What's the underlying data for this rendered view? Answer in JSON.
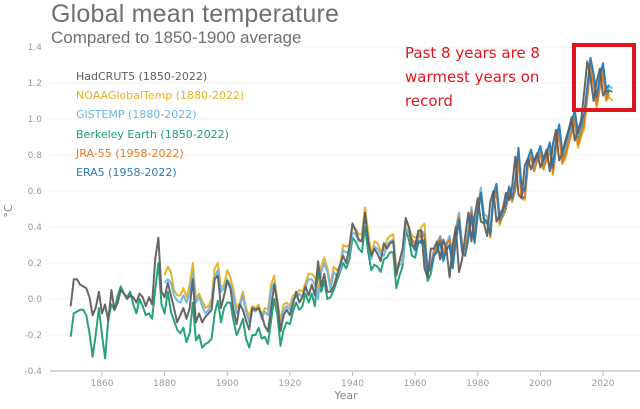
{
  "chart_data": {
    "type": "line",
    "title": "Global mean temperature",
    "subtitle": "Compared to 1850-1900 average",
    "xlabel": "Year",
    "ylabel": "°C",
    "xlim": [
      1845,
      2030
    ],
    "ylim": [
      -0.4,
      1.4
    ],
    "xticks": [
      1860,
      1880,
      1900,
      1920,
      1940,
      1960,
      1980,
      2000,
      2020
    ],
    "yticks": [
      -0.4,
      -0.2,
      0.0,
      0.2,
      0.4,
      0.6,
      0.8,
      1.0,
      1.2,
      1.4
    ],
    "ytick_labels": [
      "-0.4",
      "-0.2",
      "0.0",
      "0.2",
      "0.4",
      "0.6",
      "0.8",
      "1.0",
      "1.2",
      "1.4"
    ],
    "grid": true,
    "legend_position": "top-left",
    "annotation": {
      "text_lines": [
        "Past 8 years are 8",
        "warmest years on",
        "record"
      ],
      "color": "#e0161c",
      "highlight_years": [
        2015,
        2022
      ]
    },
    "series": [
      {
        "name": "HadCRUT5 (1850-2022)",
        "color": "#5f5f5f",
        "start": 1850,
        "values": [
          -0.04,
          0.11,
          0.11,
          0.08,
          0.07,
          0.06,
          0.01,
          -0.09,
          -0.05,
          0.04,
          -0.08,
          -0.03,
          -0.12,
          0.05,
          -0.06,
          -0.02,
          0.05,
          0.03,
          0.0,
          0.02,
          0.01,
          -0.02,
          0.03,
          0.01,
          -0.04,
          0.01,
          -0.03,
          0.22,
          0.34,
          0.04,
          0.01,
          0.09,
          0.02,
          -0.05,
          -0.13,
          -0.09,
          -0.05,
          -0.11,
          -0.05,
          0.11,
          -0.13,
          -0.08,
          -0.13,
          -0.1,
          -0.08,
          -0.06,
          0.11,
          0.13,
          -0.05,
          0.02,
          0.1,
          0.06,
          -0.06,
          -0.14,
          -0.03,
          -0.06,
          -0.12,
          -0.17,
          -0.05,
          -0.06,
          -0.05,
          -0.09,
          -0.15,
          -0.18,
          -0.05,
          0.08,
          -0.02,
          -0.18,
          -0.09,
          -0.06,
          -0.09,
          -0.03,
          0.04,
          -0.02,
          0.01,
          0.07,
          0.02,
          0.08,
          0.02,
          0.21,
          0.07,
          0.14,
          0.04,
          0.04,
          0.07,
          0.13,
          0.19,
          0.24,
          0.2,
          0.29,
          0.42,
          0.38,
          0.33,
          0.32,
          0.48,
          0.32,
          0.24,
          0.28,
          0.25,
          0.21,
          0.31,
          0.28,
          0.31,
          0.32,
          0.13,
          0.21,
          0.28,
          0.45,
          0.4,
          0.3,
          0.29,
          0.38,
          0.38,
          0.17,
          0.12,
          0.28,
          0.28,
          0.32,
          0.22,
          0.33,
          0.28,
          0.12,
          0.3,
          0.4,
          0.15,
          0.22,
          0.35,
          0.48,
          0.32,
          0.46,
          0.56,
          0.43,
          0.42,
          0.35,
          0.54,
          0.6,
          0.43,
          0.47,
          0.5,
          0.59,
          0.55,
          0.63,
          0.79,
          0.58,
          0.56,
          0.74,
          0.78,
          0.72,
          0.77,
          0.81,
          0.73,
          0.78,
          0.83,
          0.71,
          0.86,
          0.94,
          0.77,
          0.81,
          0.88,
          0.94,
          1.01,
          0.88,
          0.94,
          0.99,
          1.15,
          1.32,
          1.23,
          1.1,
          1.21,
          1.28,
          1.13,
          1.16,
          1.15
        ]
      },
      {
        "name": "NOAAGlobalTemp (1880-2022)",
        "color": "#e8b01e",
        "start": 1880,
        "values": [
          0.13,
          0.18,
          0.15,
          0.05,
          0.02,
          0.02,
          0.06,
          0.01,
          0.08,
          0.2,
          0.0,
          0.03,
          -0.01,
          -0.05,
          -0.04,
          0.0,
          0.17,
          0.2,
          0.06,
          0.08,
          0.16,
          0.12,
          0.05,
          -0.05,
          -0.02,
          0.04,
          -0.05,
          -0.1,
          -0.04,
          -0.05,
          -0.03,
          -0.09,
          -0.05,
          -0.06,
          0.08,
          0.13,
          -0.01,
          -0.12,
          -0.03,
          -0.02,
          -0.04,
          0.02,
          0.03,
          0.05,
          0.04,
          0.09,
          0.14,
          0.14,
          0.12,
          0.03,
          0.18,
          0.23,
          0.17,
          0.08,
          0.18,
          0.16,
          0.18,
          0.3,
          0.29,
          0.3,
          0.4,
          0.39,
          0.36,
          0.36,
          0.51,
          0.37,
          0.24,
          0.32,
          0.31,
          0.27,
          0.27,
          0.33,
          0.35,
          0.36,
          0.17,
          0.21,
          0.22,
          0.43,
          0.4,
          0.35,
          0.34,
          0.35,
          0.4,
          0.42,
          0.14,
          0.18,
          0.27,
          0.29,
          0.35,
          0.24,
          0.3,
          0.34,
          0.22,
          0.37,
          0.47,
          0.28,
          0.25,
          0.37,
          0.5,
          0.34,
          0.5,
          0.59,
          0.45,
          0.43,
          0.34,
          0.55,
          0.62,
          0.41,
          0.47,
          0.52,
          0.59,
          0.54,
          0.6,
          0.76,
          0.56,
          0.55,
          0.75,
          0.8,
          0.71,
          0.77,
          0.8,
          0.73,
          0.77,
          0.83,
          0.69,
          0.83,
          0.91,
          0.75,
          0.78,
          0.86,
          0.92,
          0.98,
          0.84,
          0.9,
          0.95,
          1.11,
          1.28,
          1.19,
          1.06,
          1.17,
          1.24,
          1.1,
          1.12,
          1.1
        ]
      },
      {
        "name": "GISTEMP (1880-2022)",
        "color": "#6cb4e6",
        "start": 1880,
        "values": [
          0.09,
          0.11,
          0.09,
          0.02,
          -0.01,
          -0.02,
          0.02,
          -0.02,
          0.03,
          0.15,
          -0.02,
          0.01,
          -0.04,
          -0.08,
          -0.06,
          -0.03,
          0.12,
          0.16,
          0.04,
          0.06,
          0.11,
          0.08,
          0.02,
          -0.08,
          -0.04,
          0.02,
          -0.07,
          -0.13,
          -0.06,
          -0.07,
          -0.05,
          -0.11,
          -0.07,
          -0.09,
          0.05,
          0.09,
          -0.04,
          -0.15,
          -0.06,
          -0.04,
          -0.06,
          0.0,
          0.01,
          0.03,
          0.01,
          0.07,
          0.11,
          0.11,
          0.08,
          0.0,
          0.15,
          0.2,
          0.15,
          0.05,
          0.15,
          0.13,
          0.16,
          0.27,
          0.26,
          0.26,
          0.37,
          0.36,
          0.32,
          0.32,
          0.47,
          0.33,
          0.22,
          0.29,
          0.28,
          0.25,
          0.24,
          0.3,
          0.32,
          0.33,
          0.15,
          0.19,
          0.2,
          0.4,
          0.37,
          0.32,
          0.32,
          0.33,
          0.38,
          0.36,
          0.16,
          0.2,
          0.27,
          0.31,
          0.35,
          0.26,
          0.31,
          0.35,
          0.23,
          0.39,
          0.48,
          0.31,
          0.28,
          0.39,
          0.51,
          0.35,
          0.52,
          0.62,
          0.47,
          0.46,
          0.38,
          0.58,
          0.63,
          0.44,
          0.48,
          0.53,
          0.63,
          0.56,
          0.64,
          0.82,
          0.59,
          0.59,
          0.77,
          0.82,
          0.74,
          0.8,
          0.83,
          0.76,
          0.8,
          0.86,
          0.74,
          0.88,
          0.96,
          0.8,
          0.84,
          0.91,
          0.97,
          1.04,
          0.91,
          0.97,
          1.02,
          1.17,
          1.33,
          1.24,
          1.11,
          1.22,
          1.3,
          1.15,
          1.18,
          1.17
        ]
      },
      {
        "name": "Berkeley Earth (1850-2022)",
        "color": "#1a9e72",
        "start": 1850,
        "values": [
          -0.21,
          -0.08,
          -0.07,
          -0.06,
          -0.06,
          -0.09,
          -0.19,
          -0.32,
          -0.2,
          -0.05,
          -0.2,
          -0.33,
          -0.11,
          -0.03,
          -0.06,
          0.02,
          0.07,
          0.03,
          0.01,
          0.04,
          -0.03,
          -0.08,
          0.0,
          -0.04,
          -0.09,
          -0.08,
          -0.11,
          0.05,
          0.2,
          -0.03,
          -0.08,
          0.04,
          -0.07,
          -0.12,
          -0.17,
          -0.19,
          -0.16,
          -0.24,
          -0.19,
          -0.02,
          -0.23,
          -0.2,
          -0.27,
          -0.25,
          -0.24,
          -0.22,
          -0.08,
          -0.01,
          -0.13,
          -0.05,
          -0.02,
          -0.02,
          -0.12,
          -0.2,
          -0.16,
          -0.11,
          -0.22,
          -0.27,
          -0.2,
          -0.2,
          -0.16,
          -0.22,
          -0.21,
          -0.25,
          -0.12,
          0.0,
          -0.09,
          -0.26,
          -0.17,
          -0.13,
          -0.14,
          -0.07,
          -0.02,
          -0.06,
          -0.04,
          0.03,
          -0.02,
          0.03,
          -0.04,
          0.16,
          0.04,
          0.1,
          0.0,
          0.01,
          0.05,
          0.1,
          0.15,
          0.2,
          0.17,
          0.22,
          0.34,
          0.32,
          0.28,
          0.26,
          0.4,
          0.26,
          0.16,
          0.19,
          0.18,
          0.15,
          0.22,
          0.23,
          0.26,
          0.26,
          0.06,
          0.13,
          0.18,
          0.38,
          0.33,
          0.24,
          0.23,
          0.31,
          0.33,
          0.3,
          0.1,
          0.14,
          0.24,
          0.26,
          0.32,
          0.21,
          0.28,
          0.3,
          0.17,
          0.32,
          0.43,
          0.27,
          0.25,
          0.34,
          0.46,
          0.31,
          0.47,
          0.58,
          0.43,
          0.42,
          0.35,
          0.54,
          0.6,
          0.42,
          0.46,
          0.5,
          0.6,
          0.54,
          0.61,
          0.78,
          0.57,
          0.56,
          0.74,
          0.79,
          0.72,
          0.77,
          0.81,
          0.74,
          0.78,
          0.84,
          0.72,
          0.86,
          0.94,
          0.78,
          0.82,
          0.89,
          0.95,
          1.02,
          0.89,
          0.95,
          1.0,
          1.16,
          1.31,
          1.23,
          1.1,
          1.21,
          1.28,
          1.13,
          1.16,
          1.15
        ]
      },
      {
        "name": "JRA-55 (1958-2022)",
        "color": "#e07a26",
        "start": 1958,
        "values": [
          0.36,
          0.33,
          0.3,
          0.36,
          0.34,
          0.36,
          0.14,
          0.18,
          0.26,
          0.29,
          0.34,
          0.24,
          0.3,
          0.33,
          0.21,
          0.36,
          0.46,
          0.29,
          0.27,
          0.37,
          0.49,
          0.34,
          0.5,
          0.59,
          0.45,
          0.43,
          0.35,
          0.55,
          0.6,
          0.42,
          0.47,
          0.51,
          0.59,
          0.55,
          0.61,
          0.77,
          0.56,
          0.56,
          0.75,
          0.79,
          0.71,
          0.77,
          0.81,
          0.72,
          0.78,
          0.82,
          0.7,
          0.84,
          0.92,
          0.76,
          0.8,
          0.87,
          0.93,
          0.99,
          0.86,
          0.92,
          0.97,
          1.13,
          1.29,
          1.2,
          1.08,
          1.18,
          1.25,
          1.11,
          1.14
        ]
      },
      {
        "name": "ERA5 (1958-2022)",
        "color": "#2a7ab8",
        "start": 1958,
        "values": [
          0.31,
          0.3,
          0.27,
          0.32,
          0.31,
          0.33,
          0.15,
          0.17,
          0.24,
          0.27,
          0.32,
          0.22,
          0.27,
          0.3,
          0.18,
          0.33,
          0.44,
          0.26,
          0.24,
          0.34,
          0.47,
          0.32,
          0.49,
          0.59,
          0.44,
          0.43,
          0.36,
          0.58,
          0.64,
          0.44,
          0.49,
          0.53,
          0.62,
          0.56,
          0.66,
          0.84,
          0.62,
          0.6,
          0.78,
          0.83,
          0.76,
          0.8,
          0.85,
          0.77,
          0.81,
          0.87,
          0.73,
          0.89,
          0.97,
          0.82,
          0.86,
          0.93,
          0.98,
          1.05,
          0.92,
          0.98,
          1.03,
          1.18,
          1.34,
          1.25,
          1.12,
          1.24,
          1.31,
          1.17,
          1.19
        ]
      }
    ]
  }
}
